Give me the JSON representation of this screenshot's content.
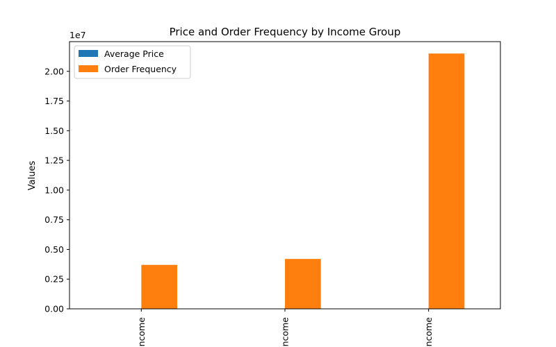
{
  "chart_data": {
    "type": "bar",
    "title": "Price and Order Frequency by Income Group",
    "xlabel": "",
    "ylabel": "Values",
    "axis_multiplier": "1e7",
    "categories": [
      "ncome",
      "ncome",
      "ncome"
    ],
    "series": [
      {
        "name": "Average Price",
        "color": "#1f77b4",
        "values": [
          0,
          0,
          0
        ]
      },
      {
        "name": "Order Frequency",
        "color": "#ff7f0e",
        "values": [
          3700000,
          4200000,
          21500000
        ]
      }
    ],
    "ylim": [
      0,
      22500000
    ],
    "yticks": [
      "0.00",
      "0.25",
      "0.50",
      "0.75",
      "1.00",
      "1.25",
      "1.50",
      "1.75",
      "2.00"
    ],
    "ytick_values": [
      0,
      2500000,
      5000000,
      7500000,
      10000000,
      12500000,
      15000000,
      17500000,
      20000000
    ],
    "legend_position": "top-left",
    "grid": false
  }
}
